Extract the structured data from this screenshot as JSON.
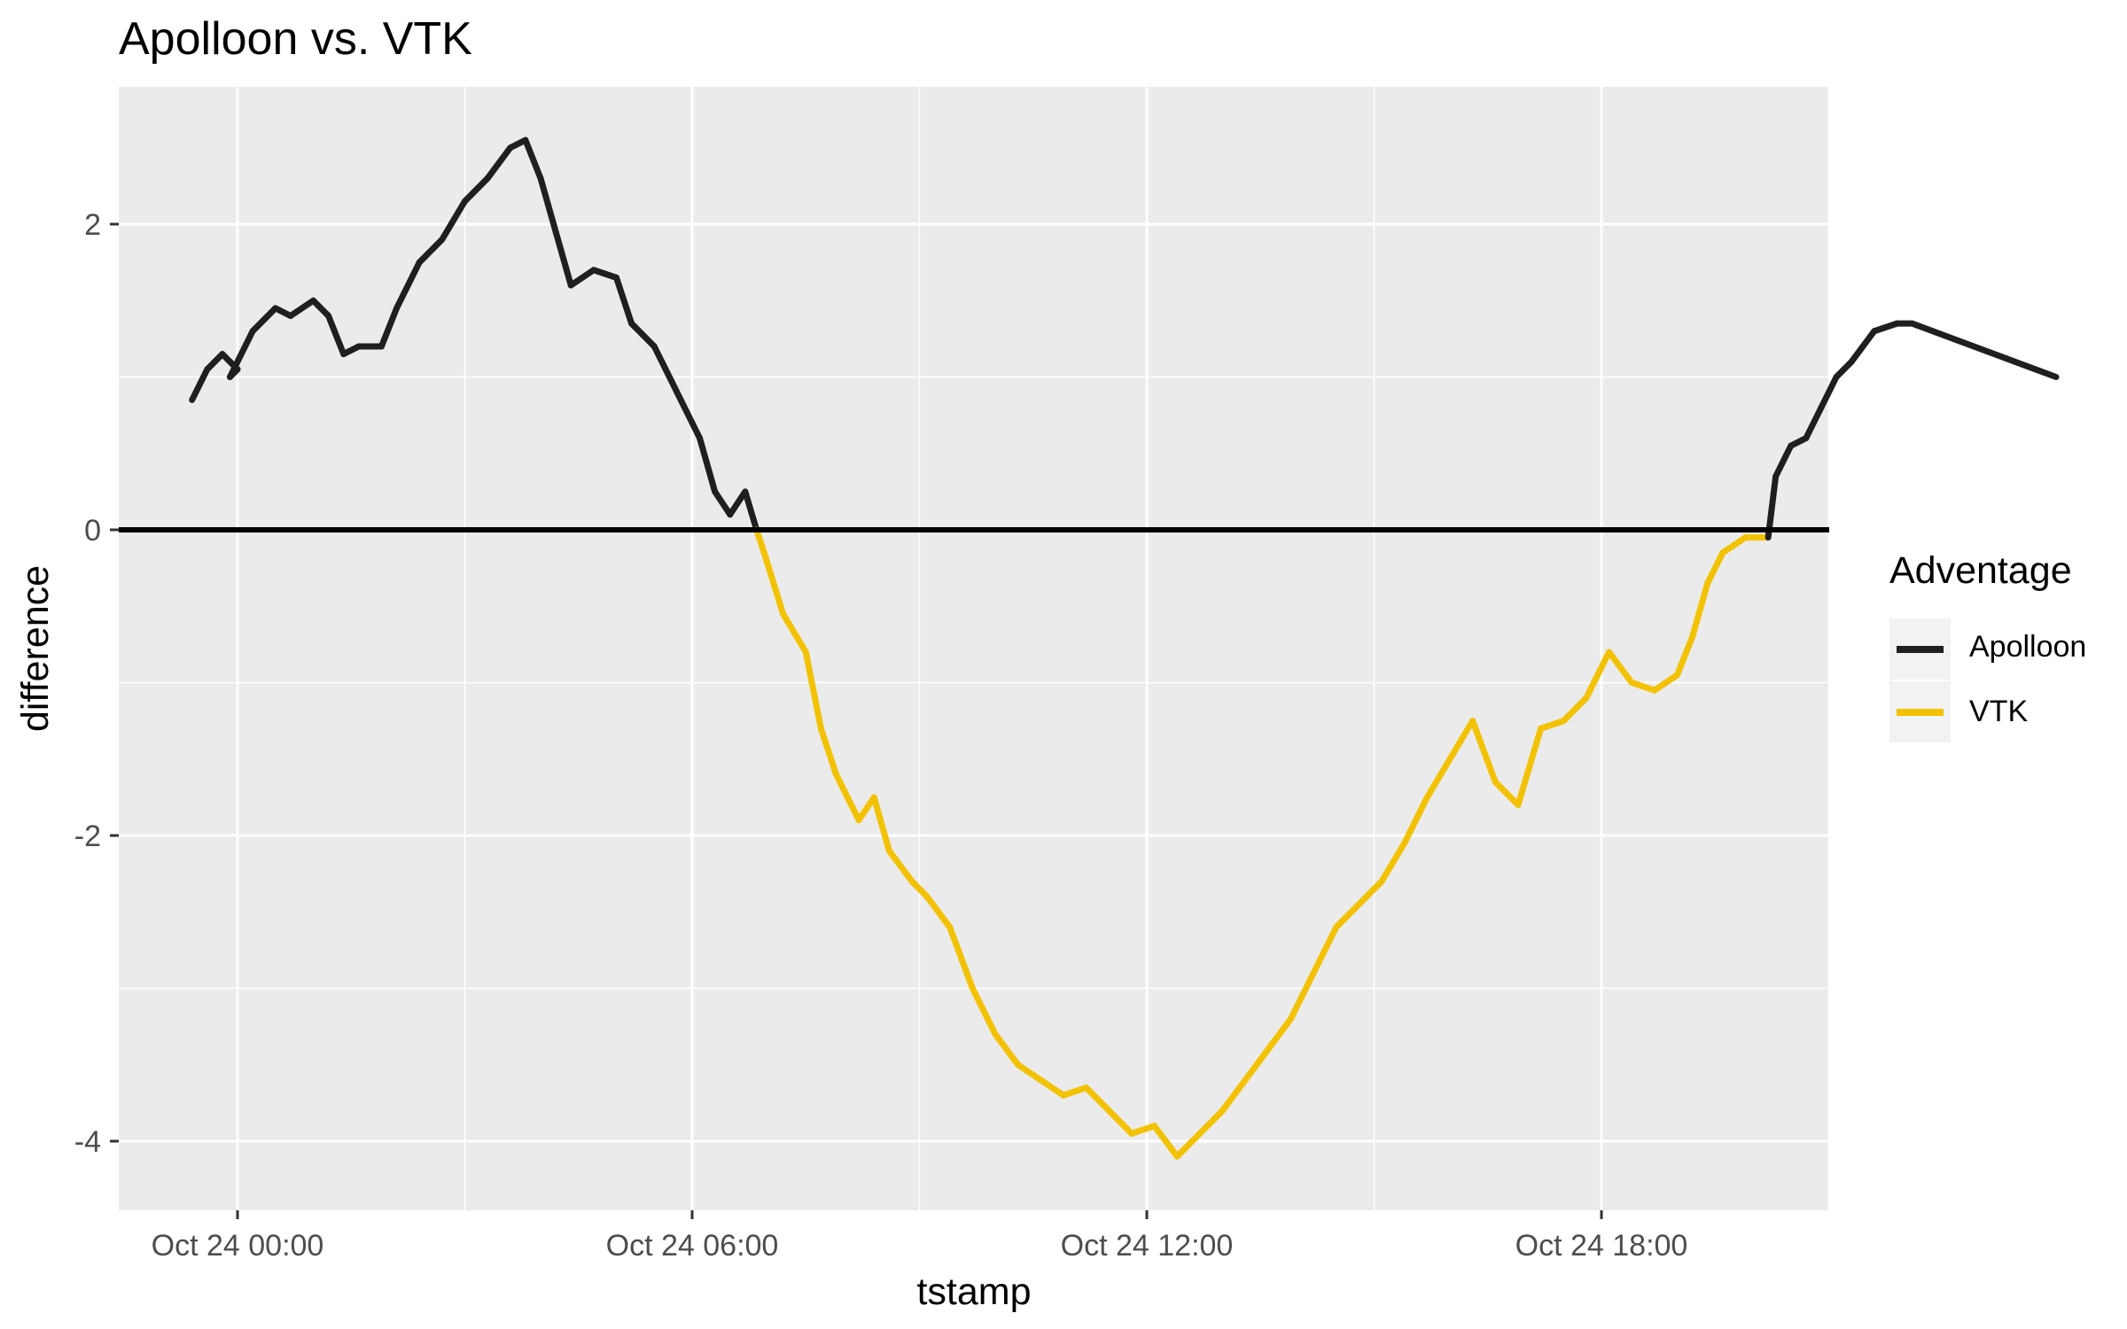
{
  "chart_data": {
    "type": "line",
    "title": "Apolloon vs. VTK",
    "xlabel": "tstamp",
    "ylabel": "difference",
    "x_ticks": [
      "Oct 24 00:00",
      "Oct 24 06:00",
      "Oct 24 12:00",
      "Oct 24 18:00"
    ],
    "x_tick_hours": [
      0,
      6,
      12,
      18
    ],
    "xlim_hours": [
      -1.6,
      21.0
    ],
    "y_ticks": [
      2,
      0,
      -2,
      -4
    ],
    "ylim": [
      -4.45,
      2.9
    ],
    "grid": true,
    "reference_line": {
      "y": 0,
      "color": "#000000"
    },
    "legend": {
      "title": "Adventage",
      "placement": "right",
      "entries": [
        {
          "name": "Apolloon",
          "color": "#1f1f1f"
        },
        {
          "name": "VTK",
          "color": "#f2c200"
        }
      ]
    },
    "points_hours": [
      [
        -0.6,
        0.85
      ],
      [
        -0.4,
        1.05
      ],
      [
        -0.2,
        1.15
      ],
      [
        0.0,
        1.05
      ],
      [
        -0.1,
        1.0
      ],
      [
        0.2,
        1.3
      ],
      [
        0.5,
        1.45
      ],
      [
        0.7,
        1.4
      ],
      [
        1.0,
        1.5
      ],
      [
        1.2,
        1.4
      ],
      [
        1.4,
        1.15
      ],
      [
        1.6,
        1.2
      ],
      [
        1.9,
        1.2
      ],
      [
        2.1,
        1.45
      ],
      [
        2.4,
        1.75
      ],
      [
        2.7,
        1.9
      ],
      [
        3.0,
        2.15
      ],
      [
        3.3,
        2.3
      ],
      [
        3.6,
        2.5
      ],
      [
        3.8,
        2.55
      ],
      [
        4.0,
        2.3
      ],
      [
        4.2,
        1.95
      ],
      [
        4.4,
        1.6
      ],
      [
        4.7,
        1.7
      ],
      [
        5.0,
        1.65
      ],
      [
        5.2,
        1.35
      ],
      [
        5.5,
        1.2
      ],
      [
        5.8,
        0.9
      ],
      [
        6.1,
        0.6
      ],
      [
        6.3,
        0.25
      ],
      [
        6.5,
        0.1
      ],
      [
        6.7,
        0.25
      ],
      [
        6.85,
        0.0
      ],
      [
        6.95,
        -0.15
      ],
      [
        7.2,
        -0.55
      ],
      [
        7.5,
        -0.8
      ],
      [
        7.7,
        -1.3
      ],
      [
        7.9,
        -1.6
      ],
      [
        8.2,
        -1.9
      ],
      [
        8.4,
        -1.75
      ],
      [
        8.6,
        -2.1
      ],
      [
        8.9,
        -2.3
      ],
      [
        9.1,
        -2.4
      ],
      [
        9.4,
        -2.6
      ],
      [
        9.7,
        -3.0
      ],
      [
        10.0,
        -3.3
      ],
      [
        10.3,
        -3.5
      ],
      [
        10.6,
        -3.6
      ],
      [
        10.9,
        -3.7
      ],
      [
        11.2,
        -3.65
      ],
      [
        11.5,
        -3.8
      ],
      [
        11.8,
        -3.95
      ],
      [
        12.1,
        -3.9
      ],
      [
        12.4,
        -4.1
      ],
      [
        12.7,
        -3.95
      ],
      [
        13.0,
        -3.8
      ],
      [
        13.3,
        -3.6
      ],
      [
        13.6,
        -3.4
      ],
      [
        13.9,
        -3.2
      ],
      [
        14.2,
        -2.9
      ],
      [
        14.5,
        -2.6
      ],
      [
        14.8,
        -2.45
      ],
      [
        15.1,
        -2.3
      ],
      [
        15.4,
        -2.05
      ],
      [
        15.7,
        -1.75
      ],
      [
        16.0,
        -1.5
      ],
      [
        16.3,
        -1.25
      ],
      [
        16.6,
        -1.65
      ],
      [
        16.9,
        -1.8
      ],
      [
        17.2,
        -1.3
      ],
      [
        17.5,
        -1.25
      ],
      [
        17.8,
        -1.1
      ],
      [
        18.1,
        -0.8
      ],
      [
        18.4,
        -1.0
      ],
      [
        18.7,
        -1.05
      ],
      [
        19.0,
        -0.95
      ],
      [
        19.2,
        -0.7
      ],
      [
        19.4,
        -0.35
      ],
      [
        19.6,
        -0.15
      ],
      [
        19.9,
        -0.05
      ],
      [
        20.2,
        -0.05
      ],
      [
        20.3,
        0.35
      ],
      [
        20.5,
        0.55
      ],
      [
        20.7,
        0.6
      ],
      [
        20.9,
        0.8
      ],
      [
        21.1,
        1.0
      ],
      [
        21.3,
        1.1
      ],
      [
        21.6,
        1.3
      ],
      [
        21.9,
        1.35
      ],
      [
        22.1,
        1.35
      ],
      [
        24.0,
        1.0
      ]
    ]
  }
}
